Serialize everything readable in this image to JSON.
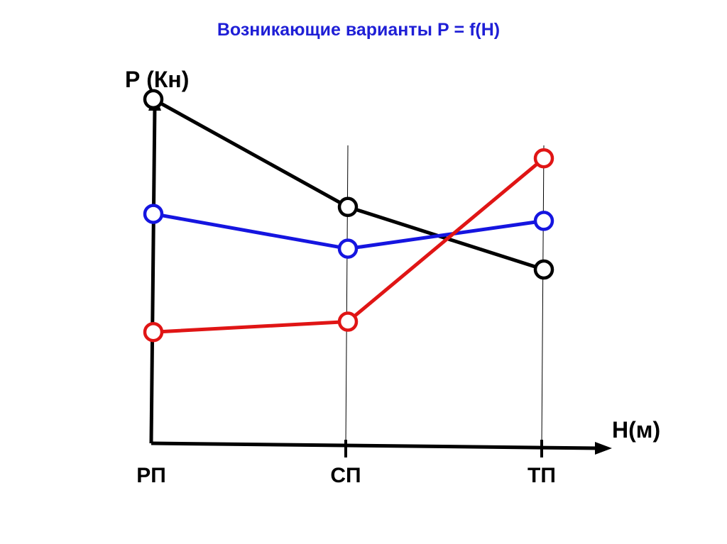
{
  "title": "Возникающие варианты Р = f(Н)",
  "chart_data": {
    "type": "line",
    "title": "Возникающие варианты Р = f(Н)",
    "ylabel": "Р (Кн)",
    "xlabel": "Н(м)",
    "categories": [
      "РП",
      "СП",
      "ТП"
    ],
    "ylim": [
      0,
      10
    ],
    "grid": false,
    "series": [
      {
        "color": "#000000",
        "values": [
          9.9,
          6.8,
          5.0
        ]
      },
      {
        "color": "#1515e0",
        "values": [
          6.6,
          5.6,
          6.4
        ]
      },
      {
        "color": "#e01515",
        "values": [
          3.2,
          3.5,
          8.2
        ]
      }
    ]
  }
}
